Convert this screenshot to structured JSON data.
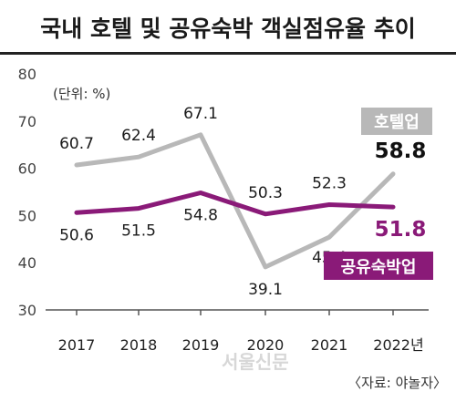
{
  "title": "국내 호텔 및 공유숙박 객실점유율 추이",
  "unit_note": "(단위: %)",
  "source": "〈자료: 야놀자〉",
  "watermark": "서울신문",
  "colors": {
    "hotel": "#b8b8b8",
    "sharing": "#8a1a78",
    "text": "#1a1a1a",
    "axis": "#555555"
  },
  "chart_data": {
    "type": "line",
    "categories": [
      "2017",
      "2018",
      "2019",
      "2020",
      "2021",
      "2022년"
    ],
    "ylim": [
      30,
      80
    ],
    "yticks": [
      30,
      40,
      50,
      60,
      70,
      80
    ],
    "grid": false,
    "series": [
      {
        "name": "호텔업",
        "values": [
          60.7,
          62.4,
          67.1,
          39.1,
          45.4,
          58.8
        ],
        "labels": [
          "60.7",
          "62.4",
          "67.1",
          "39.1",
          "45.4",
          "58.8"
        ]
      },
      {
        "name": "공유숙박업",
        "values": [
          50.6,
          51.5,
          54.8,
          50.3,
          52.3,
          51.8
        ],
        "labels": [
          "50.6",
          "51.5",
          "54.8",
          "50.3",
          "52.3",
          "51.8"
        ]
      }
    ]
  }
}
